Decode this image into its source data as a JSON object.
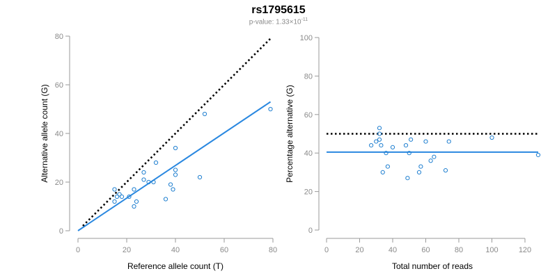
{
  "title": "rs1795615",
  "subtitle": {
    "prefix": "p-value: 1.33×10",
    "exponent": "-11"
  },
  "colors": {
    "points": "#1f7fd0",
    "fit_line": "#2a88e0",
    "reference_line": "#000000",
    "axis": "#9a9a9a",
    "tick_text": "#8a8a8a"
  },
  "chart_data": [
    {
      "type": "scatter",
      "title": "",
      "xlabel": "Reference allele count (T)",
      "ylabel": "Alternative allele count (G)",
      "xlim": [
        0,
        80
      ],
      "ylim": [
        0,
        80
      ],
      "xticks": [
        0,
        20,
        40,
        60,
        80
      ],
      "yticks": [
        0,
        20,
        40,
        60,
        80
      ],
      "grid": false,
      "points": [
        [
          15,
          17
        ],
        [
          15,
          12
        ],
        [
          16,
          14
        ],
        [
          17,
          15
        ],
        [
          18,
          14
        ],
        [
          21,
          14
        ],
        [
          23,
          17
        ],
        [
          23,
          10
        ],
        [
          24,
          12
        ],
        [
          27,
          24
        ],
        [
          27,
          21
        ],
        [
          29,
          20
        ],
        [
          31,
          20
        ],
        [
          32,
          28
        ],
        [
          36,
          13
        ],
        [
          38,
          19
        ],
        [
          39,
          17
        ],
        [
          40,
          34
        ],
        [
          40,
          25
        ],
        [
          40,
          23
        ],
        [
          50,
          22
        ],
        [
          52,
          48
        ],
        [
          79,
          50
        ]
      ],
      "reference_line": {
        "style": "dotted",
        "from": [
          2,
          2
        ],
        "to": [
          79,
          79
        ]
      },
      "fit_line": {
        "style": "solid",
        "from": [
          0,
          0
        ],
        "to": [
          79,
          53
        ]
      }
    },
    {
      "type": "scatter",
      "title": "",
      "xlabel": "Total number of reads",
      "ylabel": "Percentage alternative (G)",
      "xlim": [
        0,
        128
      ],
      "ylim": [
        0,
        100
      ],
      "xticks": [
        0,
        20,
        40,
        60,
        80,
        100,
        120
      ],
      "yticks": [
        0,
        20,
        40,
        60,
        80,
        100
      ],
      "grid": false,
      "points": [
        [
          27,
          44
        ],
        [
          30,
          46
        ],
        [
          32,
          53
        ],
        [
          32,
          50
        ],
        [
          32,
          47
        ],
        [
          33,
          44
        ],
        [
          34,
          30
        ],
        [
          36,
          40
        ],
        [
          37,
          33
        ],
        [
          40,
          43
        ],
        [
          48,
          44
        ],
        [
          49,
          27
        ],
        [
          50,
          40
        ],
        [
          51,
          47
        ],
        [
          56,
          30
        ],
        [
          57,
          33
        ],
        [
          60,
          46
        ],
        [
          63,
          36
        ],
        [
          65,
          38
        ],
        [
          72,
          31
        ],
        [
          74,
          46
        ],
        [
          100,
          48
        ],
        [
          128,
          39
        ]
      ],
      "reference_line": {
        "style": "dotted",
        "from": [
          0,
          50
        ],
        "to": [
          128,
          50
        ]
      },
      "fit_line": {
        "style": "solid",
        "from": [
          0,
          40.5
        ],
        "to": [
          128,
          40.5
        ]
      }
    }
  ]
}
